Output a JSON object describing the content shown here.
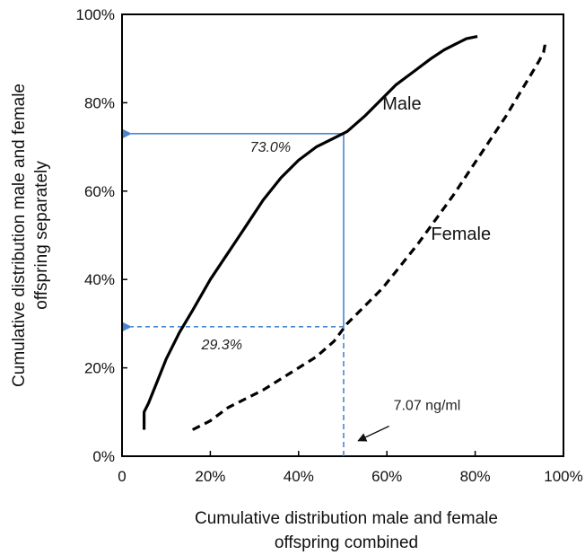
{
  "chart_data": {
    "type": "line",
    "xlabel_lines": [
      "Cumulative distribution male and female",
      "offspring combined"
    ],
    "ylabel_lines": [
      "Cumulative distribution male and female",
      "offspring separately"
    ],
    "xlim": [
      0,
      100
    ],
    "ylim": [
      0,
      100
    ],
    "x_ticks": [
      0,
      20,
      40,
      60,
      80,
      100
    ],
    "x_tick_labels": [
      "0",
      "20%",
      "40%",
      "60%",
      "80%",
      "100%"
    ],
    "y_ticks": [
      0,
      20,
      40,
      60,
      80,
      100
    ],
    "y_tick_labels": [
      "0%",
      "20%",
      "40%",
      "60%",
      "80%",
      "100%"
    ],
    "grid": false,
    "series": [
      {
        "name": "Male",
        "style": "solid",
        "color": "#000000",
        "x": [
          5,
          5,
          6,
          8,
          10,
          13,
          16,
          20,
          24,
          28,
          32,
          36,
          40,
          44,
          48,
          51,
          55,
          59,
          62,
          66,
          70,
          73,
          76,
          78,
          80.5
        ],
        "y": [
          6,
          10,
          12,
          17,
          22,
          28,
          33,
          40,
          46,
          52,
          58,
          63,
          67,
          70,
          72,
          73.5,
          77,
          81,
          84,
          87,
          90,
          92,
          93.5,
          94.5,
          95
        ]
      },
      {
        "name": "Female",
        "style": "dashed",
        "color": "#000000",
        "x": [
          16,
          20,
          24,
          28,
          32,
          36,
          40,
          44,
          48,
          51,
          55,
          59,
          63,
          67,
          71,
          75,
          79,
          83,
          87,
          90,
          93,
          94.5,
          95.5,
          95.8,
          95.8
        ],
        "y": [
          6,
          8,
          11,
          13,
          15,
          17.5,
          20,
          22.5,
          26,
          30,
          34,
          38,
          43,
          48,
          53.5,
          59,
          65,
          71,
          77,
          82,
          87,
          89.5,
          91.5,
          93,
          94
        ]
      }
    ],
    "reference": {
      "x": 50.2,
      "x_label": "7.07 ng/ml",
      "male_value": 73.0,
      "male_label": "73.0%",
      "female_value": 29.3,
      "female_label": "29.3%",
      "color": "#4a86d0"
    },
    "series_labels": [
      {
        "text": "Male",
        "x": 59,
        "y": 78.5
      },
      {
        "text": "Female",
        "x": 70,
        "y": 49
      }
    ]
  }
}
